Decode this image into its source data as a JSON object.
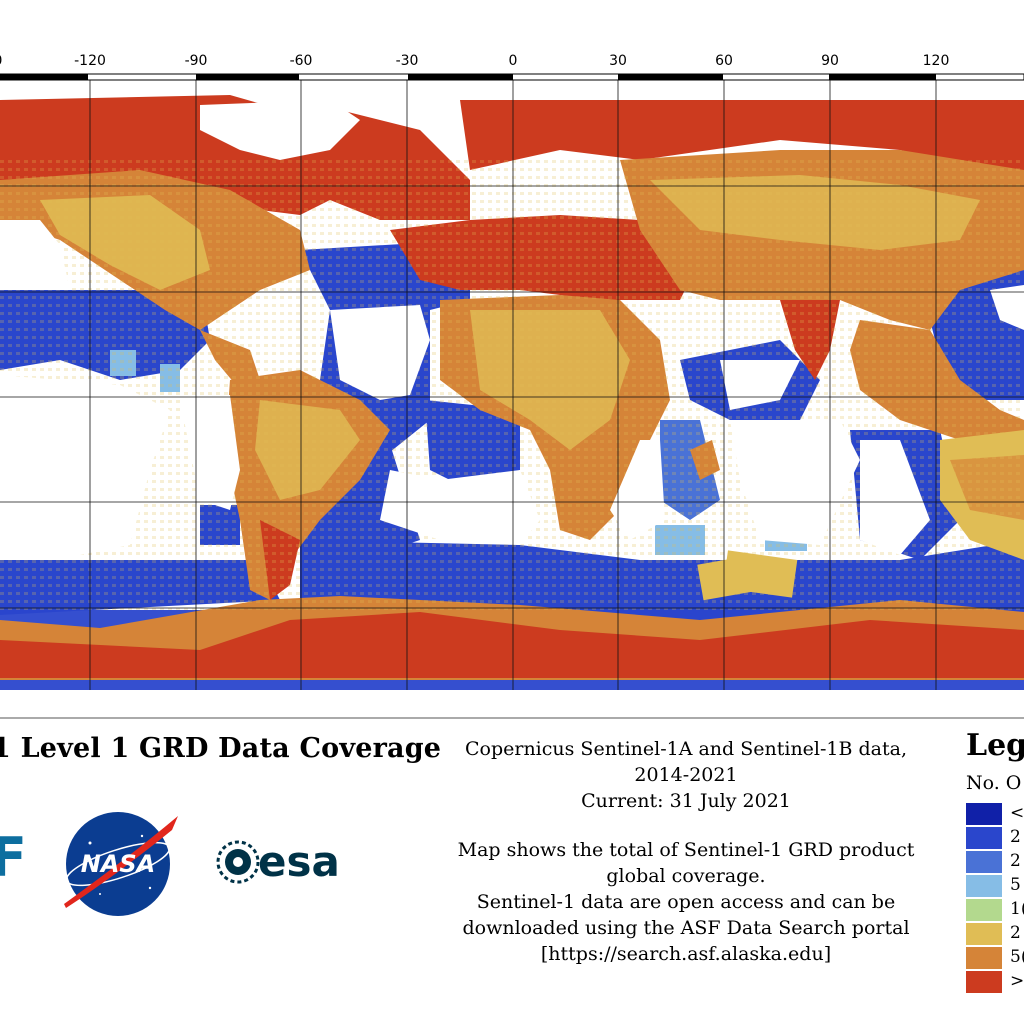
{
  "colors": {
    "ocean_background": "#ffffff",
    "class_1": "#1020a8",
    "class_2": "#2a46cc",
    "class_3": "#4a72d6",
    "class_4": "#86bde6",
    "class_5": "#b3d98e",
    "class_6": "#e0bd55",
    "class_7": "#d58438",
    "class_8": "#cc3b1f",
    "nasa_blue": "#0b3d91",
    "nasa_red": "#e1261c",
    "esa_navy": "#003247",
    "asf_blue": "#0d6e9f"
  },
  "map": {
    "longitude_labels": [
      "0",
      "-120",
      "-90",
      "-60",
      "-30",
      "0",
      "30",
      "60",
      "90",
      "120"
    ],
    "title": "1 Level 1 GRD Data Coverage"
  },
  "description": {
    "line1": "Copernicus Sentinel-1A and Sentinel-1B data,",
    "line2": "2014-2021",
    "line3": "Current: 31 July 2021",
    "line4": "Map shows the total of Sentinel-1 GRD product",
    "line5": "global coverage.",
    "line6": "Sentinel-1 data are open access and can be",
    "line7": "downloaded using the ASF Data Search portal",
    "line8": "[https://search.asf.alaska.edu]"
  },
  "legend": {
    "title": "Leg",
    "subtitle": "No. O",
    "items": [
      {
        "label": "<",
        "color": "#1020a8"
      },
      {
        "label": "2",
        "color": "#2a46cc"
      },
      {
        "label": "2",
        "color": "#4a72d6"
      },
      {
        "label": "5",
        "color": "#86bde6"
      },
      {
        "label": "1(",
        "color": "#b3d98e"
      },
      {
        "label": "2",
        "color": "#e0bd55"
      },
      {
        "label": "5(",
        "color": "#d58438"
      },
      {
        "label": ">",
        "color": "#cc3b1f"
      }
    ]
  },
  "logos": {
    "asf": "F",
    "nasa": "NASA",
    "esa": "esa"
  }
}
